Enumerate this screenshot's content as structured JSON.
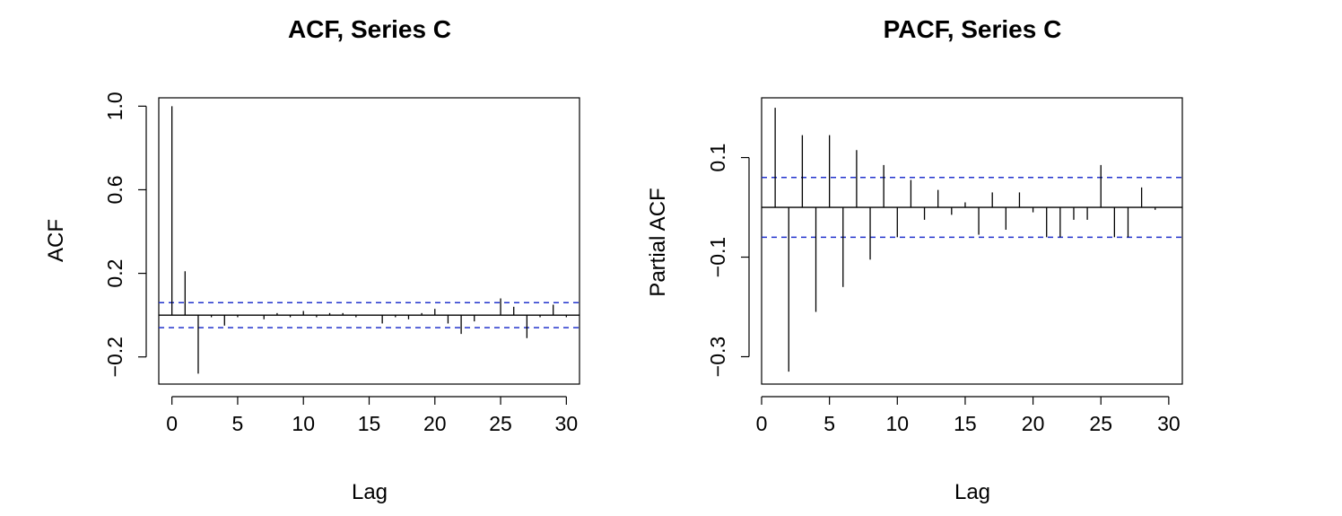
{
  "chart_data": [
    {
      "type": "bar",
      "title": "ACF, Series C",
      "xlabel": "Lag",
      "ylabel": "ACF",
      "xlim": [
        -1,
        31
      ],
      "ylim": [
        -0.33,
        1.04
      ],
      "xticks": [
        0,
        5,
        10,
        15,
        20,
        25,
        30
      ],
      "yticks": [
        -0.2,
        0.2,
        0.6,
        1.0
      ],
      "ytick_labels": [
        "−0.2",
        "0.2",
        "0.6",
        "1.0"
      ],
      "zero_line": true,
      "confidence_band": 0.06,
      "band_color": "#2233cc",
      "lags": [
        0,
        1,
        2,
        3,
        4,
        5,
        6,
        7,
        8,
        9,
        10,
        11,
        12,
        13,
        14,
        15,
        16,
        17,
        18,
        19,
        20,
        21,
        22,
        23,
        24,
        25,
        26,
        27,
        28,
        29,
        30
      ],
      "values": [
        1.0,
        0.21,
        -0.28,
        -0.01,
        -0.05,
        -0.01,
        0.0,
        -0.02,
        0.01,
        -0.01,
        0.02,
        -0.01,
        0.01,
        0.01,
        -0.01,
        0.0,
        -0.04,
        -0.01,
        -0.02,
        0.01,
        0.03,
        -0.04,
        -0.09,
        -0.03,
        0.0,
        0.08,
        0.04,
        -0.11,
        -0.01,
        0.05,
        -0.01
      ]
    },
    {
      "type": "bar",
      "title": "PACF, Series C",
      "xlabel": "Lag",
      "ylabel": "Partial ACF",
      "xlim": [
        0,
        31
      ],
      "ylim": [
        -0.355,
        0.22
      ],
      "xticks": [
        0,
        5,
        10,
        15,
        20,
        25,
        30
      ],
      "yticks": [
        -0.3,
        -0.1,
        0.1
      ],
      "ytick_labels": [
        "−0.3",
        "−0.1",
        "0.1"
      ],
      "zero_line": true,
      "confidence_band": 0.06,
      "band_color": "#2233cc",
      "lags": [
        1,
        2,
        3,
        4,
        5,
        6,
        7,
        8,
        9,
        10,
        11,
        12,
        13,
        14,
        15,
        16,
        17,
        18,
        19,
        20,
        21,
        22,
        23,
        24,
        25,
        26,
        27,
        28,
        29,
        30
      ],
      "values": [
        0.2,
        -0.33,
        0.145,
        -0.21,
        0.145,
        -0.16,
        0.115,
        -0.105,
        0.085,
        -0.06,
        0.055,
        -0.025,
        0.035,
        -0.015,
        0.01,
        -0.055,
        0.03,
        -0.045,
        0.03,
        -0.01,
        -0.06,
        -0.06,
        -0.025,
        -0.025,
        0.085,
        -0.06,
        -0.06,
        0.04,
        -0.005,
        0.0
      ]
    }
  ]
}
